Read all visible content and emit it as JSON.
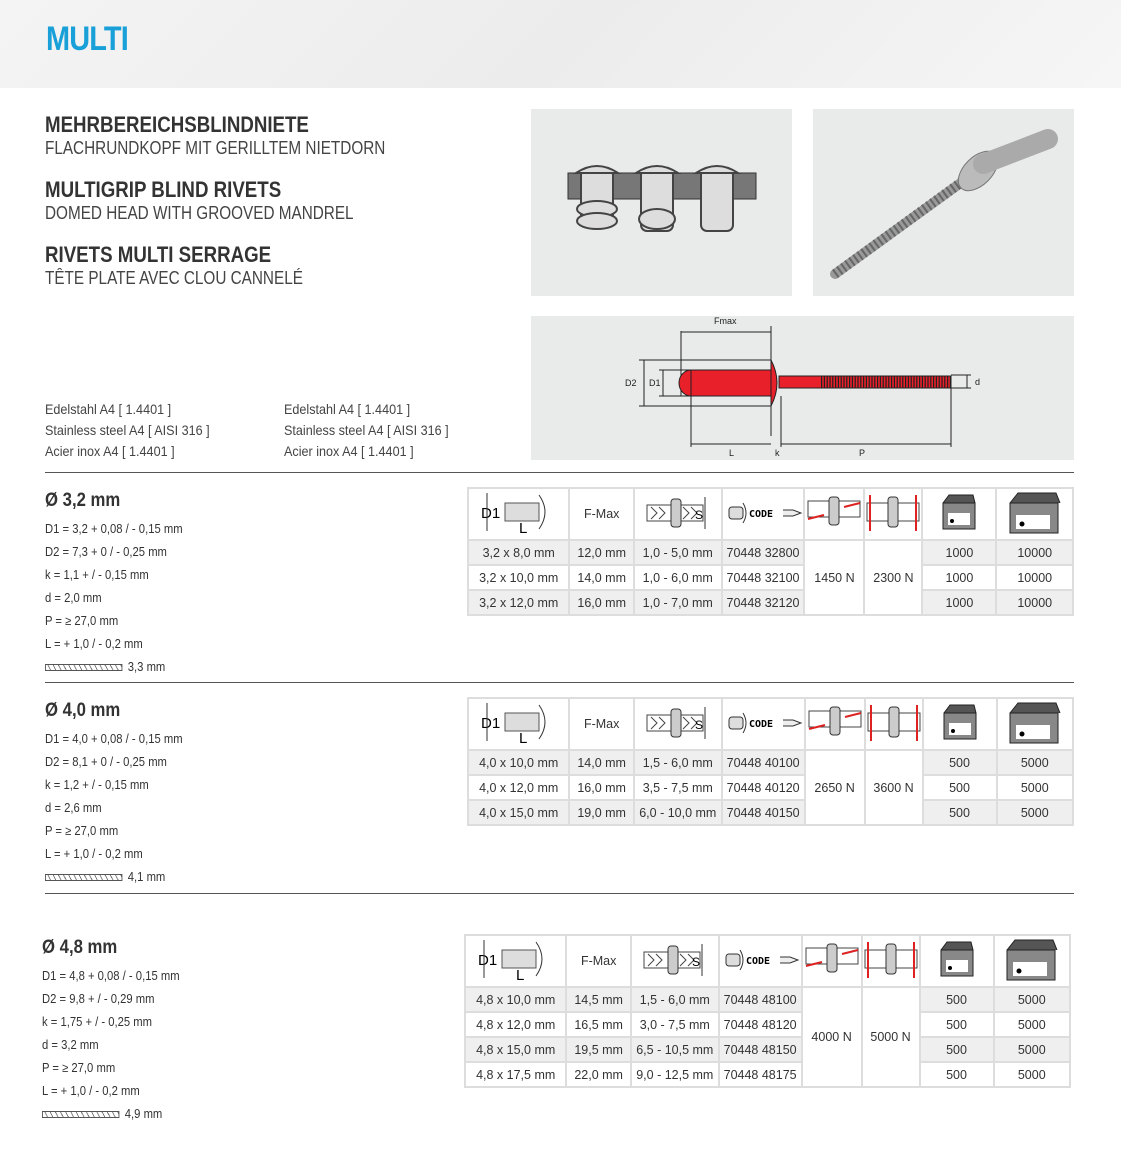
{
  "header": {
    "title": "MULTI"
  },
  "titles": [
    {
      "title": "MEHRBEREICHSBLINDNIETE",
      "subtitle": "FLACHRUNDKOPF MIT GERILLTEM NIETDORN"
    },
    {
      "title": "MULTIGRIP BLIND RIVETS",
      "subtitle": "DOMED HEAD WITH GROOVED MANDREL"
    },
    {
      "title": "RIVETS MULTI SERRAGE",
      "subtitle": "TÊTE PLATE AVEC CLOU CANNELÉ"
    }
  ],
  "materials_left": [
    "Edelstahl A4 [ 1.4401 ]",
    "Stainless steel A4 [ AISI 316 ]",
    "Acier inox A4 [ 1.4401 ]"
  ],
  "materials_right": [
    "Edelstahl A4 [ 1.4401 ]",
    "Stainless steel A4 [ AISI 316 ]",
    "Acier inox A4 [ 1.4401 ]"
  ],
  "diagram": {
    "fmax": "Fmax",
    "d2": "D2",
    "d1": "D1",
    "d": "d",
    "l": "L",
    "k": "k",
    "p": "P",
    "rivet_color": "#e8202a"
  },
  "table_header": {
    "d1": "D1",
    "l": "L",
    "fmax": "F-Max",
    "s": "S",
    "code": "CODE",
    "icons": [
      "rivet-dimension-icon",
      "grip-range-icon",
      "code-icon",
      "shear-force-icon",
      "tensile-force-icon",
      "small-box-icon",
      "large-box-icon"
    ]
  },
  "sections": [
    {
      "title": "Ø 3,2 mm",
      "specs": [
        "D1 = 3,2 + 0,08 / - 0,15 mm",
        "D2 = 7,3 + 0 / - 0,25 mm",
        "k = 1,1 + / - 0,15 mm",
        "d = 2,0 mm",
        "P = ≥ 27,0 mm",
        "L = + 1,0 / - 0,2 mm"
      ],
      "drill": "3,3 mm",
      "shear": "1450 N",
      "tensile": "2300 N",
      "rows": [
        [
          "3,2 x 8,0 mm",
          "12,0 mm",
          "1,0 - 5,0 mm",
          "70448 32800",
          "1000",
          "10000"
        ],
        [
          "3,2 x 10,0 mm",
          "14,0 mm",
          "1,0 - 6,0 mm",
          "70448 32100",
          "1000",
          "10000"
        ],
        [
          "3,2 x 12,0 mm",
          "16,0 mm",
          "1,0 - 7,0 mm",
          "70448 32120",
          "1000",
          "10000"
        ]
      ]
    },
    {
      "title": "Ø 4,0 mm",
      "specs": [
        "D1 = 4,0 + 0,08 / - 0,15 mm",
        "D2 = 8,1 + 0 / - 0,25 mm",
        "k = 1,2 + / - 0,15 mm",
        "d = 2,6 mm",
        "P = ≥ 27,0 mm",
        "L = + 1,0 / - 0,2 mm"
      ],
      "drill": "4,1 mm",
      "shear": "2650 N",
      "tensile": "3600 N",
      "rows": [
        [
          "4,0 x 10,0 mm",
          "14,0 mm",
          "1,5 - 6,0 mm",
          "70448 40100",
          "500",
          "5000"
        ],
        [
          "4,0 x 12,0 mm",
          "16,0 mm",
          "3,5 - 7,5 mm",
          "70448 40120",
          "500",
          "5000"
        ],
        [
          "4,0 x 15,0 mm",
          "19,0 mm",
          "6,0 - 10,0 mm",
          "70448 40150",
          "500",
          "5000"
        ]
      ]
    },
    {
      "title": "Ø 4,8 mm",
      "specs": [
        "D1 = 4,8 + 0,08 / - 0,15 mm",
        "D2 = 9,8 + / - 0,29 mm",
        "k = 1,75 + / - 0,25 mm",
        "d = 3,2 mm",
        "P = ≥ 27,0 mm",
        "L = + 1,0 / - 0,2 mm"
      ],
      "drill": "4,9 mm",
      "shear": "4000 N",
      "tensile": "5000 N",
      "rows": [
        [
          "4,8 x 10,0 mm",
          "14,5 mm",
          "1,5 - 6,0 mm",
          "70448 48100",
          "500",
          "5000"
        ],
        [
          "4,8 x 12,0 mm",
          "16,5 mm",
          "3,0 - 7,5 mm",
          "70448 48120",
          "500",
          "5000"
        ],
        [
          "4,8 x 15,0 mm",
          "19,5 mm",
          "6,5 - 10,5 mm",
          "70448 48150",
          "500",
          "5000"
        ],
        [
          "4,8 x 17,5 mm",
          "22,0 mm",
          "9,0 - 12,5 mm",
          "70448 48175",
          "500",
          "5000"
        ]
      ]
    }
  ]
}
